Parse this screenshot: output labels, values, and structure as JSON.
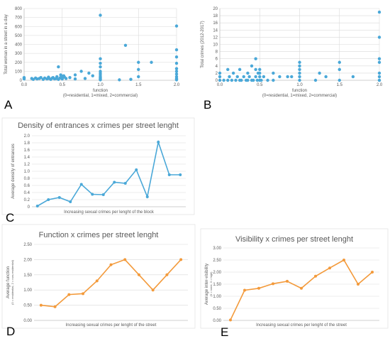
{
  "colors": {
    "blue": "#4aa8d8",
    "orange": "#f39a3b"
  },
  "panel_letters": [
    "A",
    "B",
    "C",
    "D",
    "E"
  ],
  "chart_data": [
    {
      "id": "A",
      "type": "scatter",
      "title": "",
      "xlabel": "function",
      "xlabel2": "(0=residential, 1=mixed, 2=commercial)",
      "ylabel": "Total woman in a street in a day",
      "xlim": [
        0,
        2
      ],
      "ylim": [
        0,
        800
      ],
      "xticks": [
        "0.0",
        "0.5",
        "1.0",
        "1.5",
        "2.0"
      ],
      "yticks": [
        "0",
        "100",
        "200",
        "300",
        "400",
        "500",
        "600",
        "700",
        "800"
      ],
      "x": [
        0.0,
        0.0,
        0.0,
        0.1,
        0.12,
        0.15,
        0.17,
        0.2,
        0.22,
        0.25,
        0.27,
        0.3,
        0.32,
        0.33,
        0.35,
        0.37,
        0.38,
        0.4,
        0.42,
        0.43,
        0.45,
        0.45,
        0.47,
        0.48,
        0.48,
        0.5,
        0.5,
        0.5,
        0.52,
        0.53,
        0.55,
        0.6,
        0.67,
        0.67,
        0.75,
        0.8,
        0.85,
        0.9,
        1.0,
        1.0,
        1.0,
        1.0,
        1.0,
        1.0,
        1.0,
        1.0,
        1.0,
        1.0,
        1.0,
        1.0,
        1.25,
        1.33,
        1.4,
        1.5,
        1.5,
        1.5,
        1.67,
        2.0,
        2.0,
        2.0,
        2.0,
        2.0,
        2.0,
        2.0,
        2.0,
        2.0,
        2.0,
        2.0
      ],
      "y": [
        15,
        25,
        30,
        20,
        10,
        25,
        15,
        20,
        30,
        10,
        25,
        15,
        35,
        20,
        10,
        25,
        30,
        15,
        20,
        40,
        150,
        10,
        25,
        30,
        60,
        20,
        45,
        15,
        50,
        35,
        20,
        30,
        60,
        15,
        100,
        20,
        80,
        50,
        725,
        240,
        190,
        150,
        100,
        80,
        60,
        40,
        30,
        20,
        10,
        5,
        5,
        390,
        10,
        200,
        120,
        40,
        200,
        605,
        340,
        260,
        190,
        130,
        100,
        70,
        40,
        20,
        10,
        5
      ]
    },
    {
      "id": "B",
      "type": "scatter",
      "title": "",
      "xlabel": "function",
      "xlabel2": "(0=residential, 1=mixed, 2=commercial)",
      "ylabel": "Total crimes (2012-2017)",
      "xlim": [
        0,
        2
      ],
      "ylim": [
        0,
        20
      ],
      "xticks": [
        "0.0",
        "0.5",
        "1.0",
        "1.5",
        "2.0"
      ],
      "yticks": [
        "0",
        "2",
        "4",
        "6",
        "8",
        "10",
        "12",
        "14",
        "16",
        "18",
        "20"
      ],
      "x": [
        0.0,
        0.0,
        0.0,
        0.05,
        0.1,
        0.1,
        0.12,
        0.15,
        0.17,
        0.2,
        0.22,
        0.25,
        0.25,
        0.27,
        0.3,
        0.33,
        0.35,
        0.35,
        0.37,
        0.4,
        0.4,
        0.42,
        0.45,
        0.45,
        0.45,
        0.47,
        0.48,
        0.5,
        0.5,
        0.5,
        0.5,
        0.52,
        0.55,
        0.6,
        0.67,
        0.67,
        0.75,
        0.85,
        0.9,
        1.0,
        1.0,
        1.0,
        1.0,
        1.0,
        1.0,
        1.2,
        1.25,
        1.33,
        1.5,
        1.5,
        1.5,
        1.67,
        2.0,
        2.0,
        2.0,
        2.0,
        2.0,
        2.0,
        2.0,
        2.0
      ],
      "y": [
        0,
        1,
        2,
        0,
        0,
        3,
        1,
        0,
        2,
        0,
        1,
        0,
        3,
        0,
        1,
        0,
        0,
        2,
        1,
        0,
        4,
        0,
        6,
        3,
        1,
        0,
        2,
        0,
        1,
        2,
        3,
        0,
        1,
        0,
        0,
        2,
        1,
        1,
        1,
        5,
        4,
        3,
        2,
        1,
        0,
        0,
        2,
        1,
        5,
        3,
        0,
        1,
        19,
        12,
        6,
        5,
        2,
        1,
        0,
        0
      ]
    },
    {
      "id": "C",
      "type": "line",
      "title": "Density of entrances x crimes per street lenght",
      "xlabel": "Increasing sexual crimes per lenght of the block",
      "ylabel": "Average density of entrances",
      "ylim": [
        0,
        2.0
      ],
      "yticks": [
        "0",
        "0.2",
        "0.4",
        "0.6",
        "0.8",
        "1.0",
        "1.2",
        "1.4",
        "1.6",
        "1.8",
        "2.0"
      ],
      "values": [
        0.02,
        0.2,
        0.26,
        0.14,
        0.63,
        0.35,
        0.34,
        0.69,
        0.66,
        1.04,
        0.28,
        1.82,
        0.9,
        0.9
      ]
    },
    {
      "id": "D",
      "type": "line",
      "title": "Function x crimes per street lenght",
      "xlabel": "Increasing sexual crimes per lenght of the street",
      "ylabel": "Average function",
      "ylabel2": "(0 = residential, 2 = non-residential)",
      "ylim": [
        0,
        2.5
      ],
      "yticks": [
        "0.00",
        "0.50",
        "1.00",
        "1.50",
        "2.00",
        "2.50"
      ],
      "values": [
        0.5,
        0.45,
        0.85,
        0.88,
        1.3,
        1.83,
        2.0,
        1.5,
        1.0,
        1.5,
        2.0
      ]
    },
    {
      "id": "E",
      "type": "line",
      "title": "Visibility x crimes per street lenght",
      "xlabel": "Increasing sexual crimes per lenght of the street",
      "ylabel": "Average inter-visibility",
      "ylabel2": "(0 = none, 3 = high)",
      "ylim": [
        0,
        3.0
      ],
      "yticks": [
        "0.00",
        "0.50",
        "1.00",
        "1.50",
        "2.00",
        "2.50",
        "3.00"
      ],
      "values": [
        0.02,
        1.25,
        1.33,
        1.52,
        1.62,
        1.33,
        1.83,
        2.17,
        2.5,
        1.5,
        2.0
      ]
    }
  ]
}
